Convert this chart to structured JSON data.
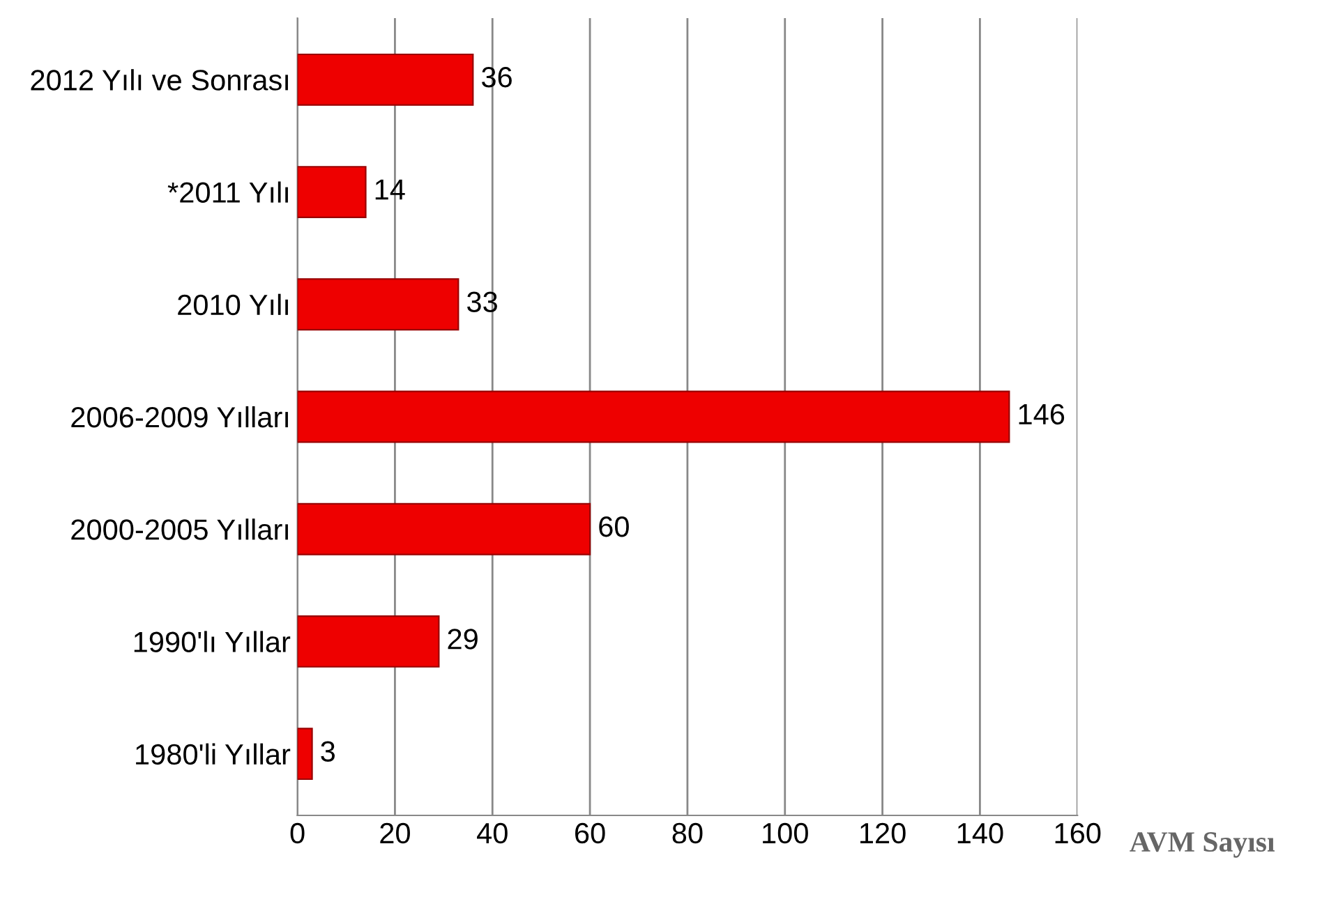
{
  "chart_data": {
    "type": "bar",
    "orientation": "horizontal",
    "categories": [
      "2012 Yılı ve Sonrası",
      "*2011 Yılı",
      "2010 Yılı",
      "2006-2009 Yılları",
      "2000-2005 Yılları",
      "1990'lı Yıllar",
      "1980'li Yıllar"
    ],
    "values": [
      36,
      14,
      33,
      146,
      60,
      29,
      3
    ],
    "color": "#ee0000",
    "xlim": [
      0,
      160
    ],
    "xticks": [
      0,
      20,
      40,
      60,
      80,
      100,
      120,
      140,
      160
    ],
    "xlabel": "AVM Sayısı",
    "grid": "x",
    "data_labels": true
  }
}
